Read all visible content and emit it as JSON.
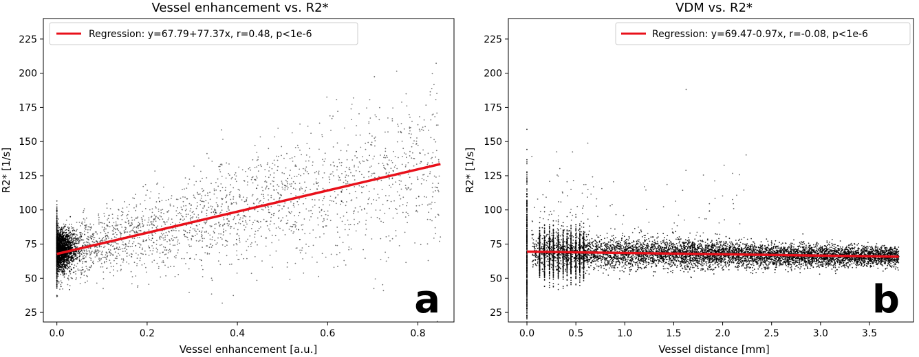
{
  "chart_data": [
    {
      "type": "scatter",
      "title": "Vessel enhancement vs. R2*",
      "xlabel": "Vessel enhancement [a.u.]",
      "ylabel": "R2* [1/s]",
      "xlim": [
        -0.03,
        0.88
      ],
      "ylim": [
        18,
        240
      ],
      "x_ticks": [
        "0.0",
        "0.2",
        "0.4",
        "0.6",
        "0.8"
      ],
      "y_ticks": [
        "25",
        "50",
        "75",
        "100",
        "125",
        "150",
        "175",
        "200",
        "225"
      ],
      "grid": false,
      "legend_position": "top-left",
      "panel_label": "a",
      "regression": {
        "label": "Regression: y=67.79+77.37x, r=0.48, p<1e-6",
        "intercept": 67.79,
        "slope": 77.37,
        "x_range": [
          0.0,
          0.85
        ],
        "color": "#e8101a"
      },
      "point_color": "#000000"
    },
    {
      "type": "scatter",
      "title": "VDM vs. R2*",
      "xlabel": "Vessel distance [mm]",
      "ylabel": "R2* [1/s]",
      "xlim": [
        -0.19,
        3.95
      ],
      "ylim": [
        18,
        240
      ],
      "x_ticks": [
        "0.0",
        "0.5",
        "1.0",
        "1.5",
        "2.0",
        "2.5",
        "3.0",
        "3.5"
      ],
      "y_ticks": [
        "25",
        "50",
        "75",
        "100",
        "125",
        "150",
        "175",
        "200",
        "225"
      ],
      "grid": false,
      "legend_position": "top-right",
      "panel_label": "b",
      "regression": {
        "label": "Regression: y=69.47-0.97x, r=-0.08, p<1e-6",
        "intercept": 69.47,
        "slope": -0.97,
        "x_range": [
          0.0,
          3.8
        ],
        "color": "#e8101a"
      },
      "point_color": "#000000"
    }
  ]
}
